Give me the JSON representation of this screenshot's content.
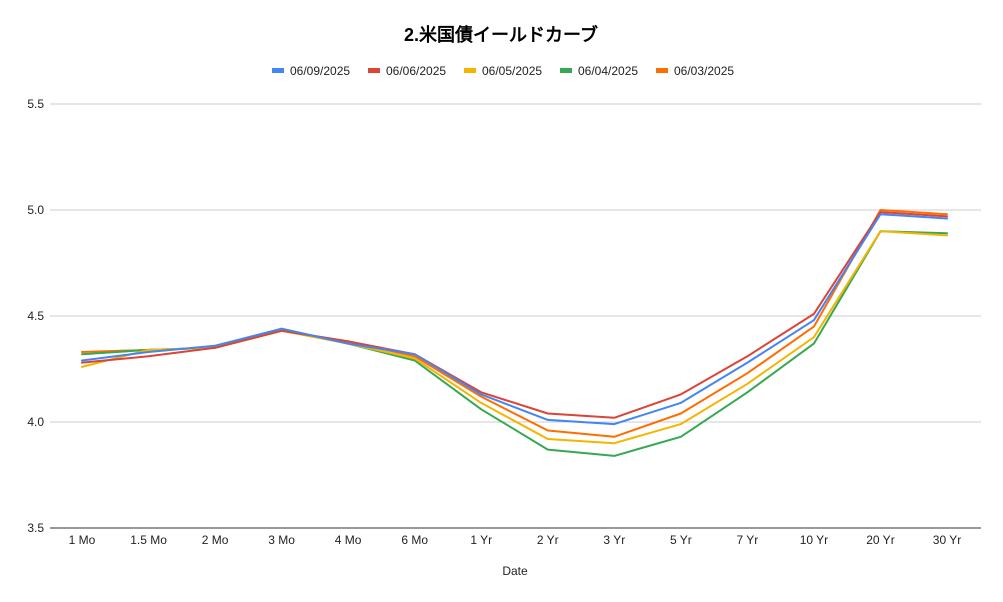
{
  "chart_data": {
    "type": "line",
    "title": "2.米国債イールドカーブ",
    "xlabel": "Date",
    "ylabel": "",
    "ylim": [
      3.5,
      5.5
    ],
    "yticks": [
      "3.5",
      "4.0",
      "4.5",
      "5.0",
      "5.5"
    ],
    "grid": true,
    "legend_position": "top",
    "categories": [
      "1 Mo",
      "1.5 Mo",
      "2 Mo",
      "3 Mo",
      "4 Mo",
      "6 Mo",
      "1 Yr",
      "2 Yr",
      "3 Yr",
      "5 Yr",
      "7 Yr",
      "10 Yr",
      "20 Yr",
      "30 Yr"
    ],
    "series": [
      {
        "name": "06/09/2025",
        "color": "#4285f4",
        "values": [
          4.29,
          4.33,
          4.36,
          4.44,
          4.37,
          4.32,
          4.13,
          4.01,
          3.99,
          4.09,
          4.28,
          4.48,
          4.98,
          4.96
        ]
      },
      {
        "name": "06/06/2025",
        "color": "#db4437",
        "values": [
          4.28,
          4.31,
          4.35,
          4.43,
          4.38,
          4.32,
          4.14,
          4.04,
          4.02,
          4.13,
          4.31,
          4.51,
          4.99,
          4.97
        ]
      },
      {
        "name": "06/05/2025",
        "color": "#f4b400",
        "values": [
          4.26,
          4.34,
          4.35,
          4.43,
          4.37,
          4.3,
          4.09,
          3.92,
          3.9,
          3.99,
          4.18,
          4.4,
          4.9,
          4.88
        ]
      },
      {
        "name": "06/04/2025",
        "color": "#34a853",
        "values": [
          4.32,
          4.34,
          4.35,
          4.44,
          4.37,
          4.29,
          4.06,
          3.87,
          3.84,
          3.93,
          4.14,
          4.37,
          4.9,
          4.89
        ]
      },
      {
        "name": "06/03/2025",
        "color": "#ff6d01",
        "values": [
          4.33,
          4.34,
          4.35,
          4.43,
          4.38,
          4.31,
          4.12,
          3.96,
          3.93,
          4.04,
          4.23,
          4.45,
          5.0,
          4.98
        ]
      }
    ]
  }
}
